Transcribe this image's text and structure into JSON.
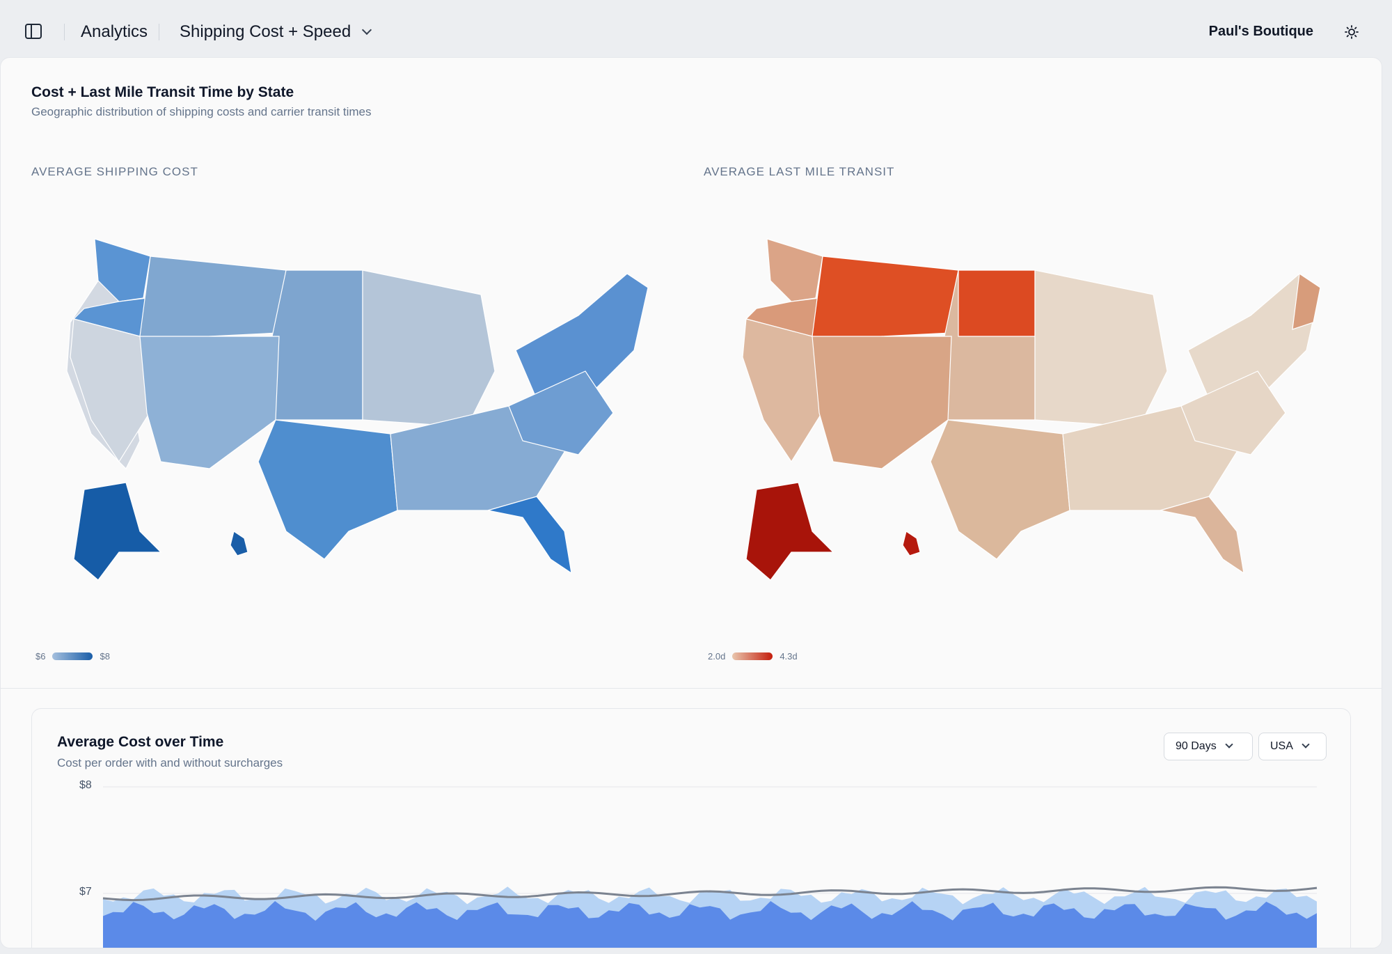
{
  "header": {
    "section": "Analytics",
    "page": "Shipping Cost + Speed",
    "brand": "Paul's Boutique"
  },
  "icons": {
    "sidebar": "sidebar-toggle-icon",
    "theme": "sun-icon",
    "dropdown": "chevron-down-icon"
  },
  "maps_card": {
    "title": "Cost + Last Mile Transit Time by State",
    "subtitle": "Geographic distribution of shipping costs and carrier transit times",
    "cost_map": {
      "label": "AVERAGE SHIPPING COST",
      "legend_min": "$6",
      "legend_max": "$8",
      "colors": {
        "light": "#d6dbe3",
        "mid": "#7fa6cf",
        "strong": "#3f86d0",
        "max": "#1a5ea8"
      }
    },
    "transit_map": {
      "label": "AVERAGE LAST MILE TRANSIT",
      "legend_min": "2.0d",
      "legend_max": "4.3d",
      "colors": {
        "light": "#e8d9cb",
        "mid": "#d9a98b",
        "strong": "#de4f24",
        "max": "#a8140a"
      }
    }
  },
  "cost_chart": {
    "title": "Average Cost over Time",
    "subtitle": "Cost per order with and without surcharges",
    "range_select": "90 Days",
    "region_select": "USA"
  },
  "chart_data": {
    "type": "area",
    "yticks": [
      "$8",
      "$7"
    ],
    "ylim": [
      6,
      8
    ],
    "series": [],
    "colors": {
      "upper": "#b6d3f4",
      "lower": "#5b8ae8",
      "line": "#7b8390"
    }
  }
}
